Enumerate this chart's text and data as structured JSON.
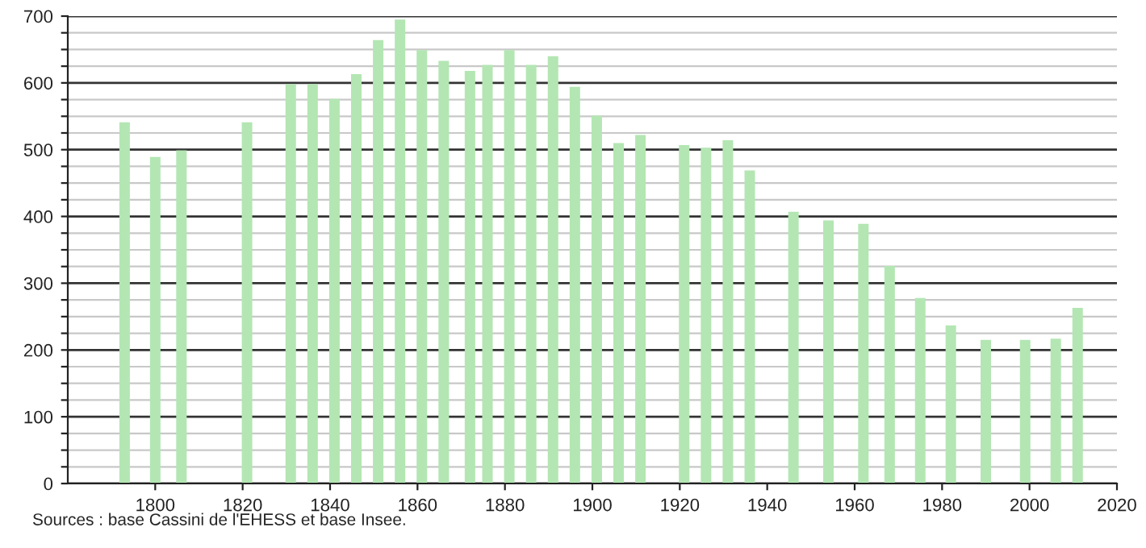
{
  "chart_data": {
    "type": "bar",
    "x": [
      1793,
      1800,
      1806,
      1821,
      1831,
      1836,
      1841,
      1846,
      1851,
      1856,
      1861,
      1866,
      1872,
      1876,
      1881,
      1886,
      1891,
      1896,
      1901,
      1906,
      1911,
      1921,
      1926,
      1931,
      1936,
      1946,
      1954,
      1962,
      1968,
      1975,
      1982,
      1990,
      1999,
      2006,
      2011
    ],
    "values": [
      541,
      489,
      499,
      541,
      598,
      598,
      576,
      613,
      664,
      695,
      649,
      633,
      618,
      627,
      649,
      627,
      640,
      594,
      551,
      510,
      522,
      507,
      503,
      514,
      469,
      407,
      394,
      389,
      326,
      278,
      237,
      215,
      215,
      217,
      263
    ],
    "color": "#b3e6b3",
    "xlim": [
      1780,
      2020
    ],
    "xticks": [
      1800,
      1820,
      1840,
      1860,
      1880,
      1900,
      1920,
      1940,
      1960,
      1980,
      2000,
      2020
    ],
    "ylim": [
      0,
      700
    ],
    "yticks": [
      0,
      {
        "value": 25,
        "label": null
      },
      {
        "value": 50,
        "label": null
      },
      {
        "value": 75,
        "label": null
      },
      100,
      {
        "value": 125,
        "label": null
      },
      {
        "value": 150,
        "label": null
      },
      {
        "value": 175,
        "label": null
      },
      200,
      {
        "value": 225,
        "label": null
      },
      {
        "value": 250,
        "label": null
      },
      {
        "value": 275,
        "label": null
      },
      300,
      {
        "value": 325,
        "label": null
      },
      {
        "value": 350,
        "label": null
      },
      {
        "value": 375,
        "label": null
      },
      400,
      {
        "value": 425,
        "label": null
      },
      {
        "value": 450,
        "label": null
      },
      {
        "value": 475,
        "label": null
      },
      500,
      {
        "value": 525,
        "label": null
      },
      {
        "value": 550,
        "label": null
      },
      {
        "value": 575,
        "label": null
      },
      600,
      {
        "value": 625,
        "label": null
      },
      {
        "value": 650,
        "label": null
      },
      {
        "value": 675,
        "label": null
      },
      700
    ],
    "grid": "y",
    "annotations": [
      "Sources : base Cassini de l'EHESS et base Insee."
    ]
  }
}
